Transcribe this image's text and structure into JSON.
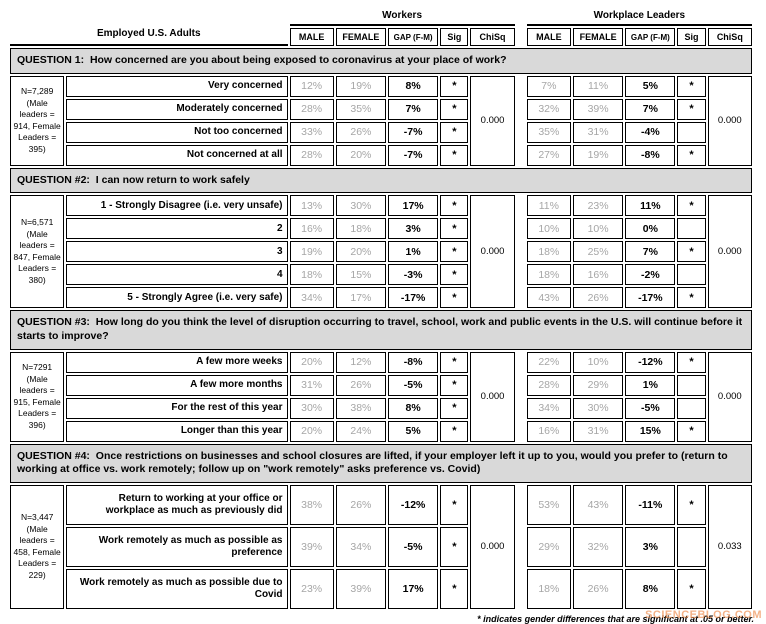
{
  "header": {
    "adults_label": "Employed U.S. Adults",
    "workers_label": "Workers",
    "leaders_label": "Workplace Leaders",
    "columns": {
      "male": "MALE",
      "female": "FEMALE",
      "gap": "GAP (F-M)",
      "sig": "Sig",
      "chisq": "ChiSq"
    }
  },
  "questions": [
    {
      "prefix": "QUESTION 1:",
      "text": "How concerned are you about being exposed to coronavirus at your place of work?",
      "n_label": "N=7,289 (Male leaders = 914, Female Leaders = 395)",
      "workers_chisq": "0.000",
      "leaders_chisq": "0.000",
      "rows": [
        {
          "label": "Very concerned",
          "workers": {
            "male": "12%",
            "female": "19%",
            "gap": "8%",
            "sig": "*"
          },
          "leaders": {
            "male": "7%",
            "female": "11%",
            "gap": "5%",
            "sig": "*"
          }
        },
        {
          "label": "Moderately concerned",
          "workers": {
            "male": "28%",
            "female": "35%",
            "gap": "7%",
            "sig": "*"
          },
          "leaders": {
            "male": "32%",
            "female": "39%",
            "gap": "7%",
            "sig": "*"
          }
        },
        {
          "label": "Not too concerned",
          "workers": {
            "male": "33%",
            "female": "26%",
            "gap": "-7%",
            "sig": "*"
          },
          "leaders": {
            "male": "35%",
            "female": "31%",
            "gap": "-4%",
            "sig": ""
          }
        },
        {
          "label": "Not concerned at all",
          "workers": {
            "male": "28%",
            "female": "20%",
            "gap": "-7%",
            "sig": "*"
          },
          "leaders": {
            "male": "27%",
            "female": "19%",
            "gap": "-8%",
            "sig": "*"
          }
        }
      ]
    },
    {
      "prefix": "QUESTION #2:",
      "text": "I can now return to work safely",
      "n_label": "N=6,571 (Male leaders = 847, Female Leaders = 380)",
      "workers_chisq": "0.000",
      "leaders_chisq": "0.000",
      "rows": [
        {
          "label": "1 - Strongly Disagree (i.e. very unsafe)",
          "workers": {
            "male": "13%",
            "female": "30%",
            "gap": "17%",
            "sig": "*"
          },
          "leaders": {
            "male": "11%",
            "female": "23%",
            "gap": "11%",
            "sig": "*"
          }
        },
        {
          "label": "2",
          "workers": {
            "male": "16%",
            "female": "18%",
            "gap": "3%",
            "sig": "*"
          },
          "leaders": {
            "male": "10%",
            "female": "10%",
            "gap": "0%",
            "sig": ""
          }
        },
        {
          "label": "3",
          "workers": {
            "male": "19%",
            "female": "20%",
            "gap": "1%",
            "sig": "*"
          },
          "leaders": {
            "male": "18%",
            "female": "25%",
            "gap": "7%",
            "sig": "*"
          }
        },
        {
          "label": "4",
          "workers": {
            "male": "18%",
            "female": "15%",
            "gap": "-3%",
            "sig": "*"
          },
          "leaders": {
            "male": "18%",
            "female": "16%",
            "gap": "-2%",
            "sig": ""
          }
        },
        {
          "label": "5 - Strongly Agree (i.e. very safe)",
          "workers": {
            "male": "34%",
            "female": "17%",
            "gap": "-17%",
            "sig": "*"
          },
          "leaders": {
            "male": "43%",
            "female": "26%",
            "gap": "-17%",
            "sig": "*"
          }
        }
      ]
    },
    {
      "prefix": "QUESTION #3:",
      "text": "How long do you think the level of disruption occurring to travel, school, work and public events in the U.S. will continue before it starts to improve?",
      "n_label": "N=7291 (Male leaders = 915, Female Leaders = 396)",
      "workers_chisq": "0.000",
      "leaders_chisq": "0.000",
      "rows": [
        {
          "label": "A few more weeks",
          "workers": {
            "male": "20%",
            "female": "12%",
            "gap": "-8%",
            "sig": "*"
          },
          "leaders": {
            "male": "22%",
            "female": "10%",
            "gap": "-12%",
            "sig": "*"
          }
        },
        {
          "label": "A few more months",
          "workers": {
            "male": "31%",
            "female": "26%",
            "gap": "-5%",
            "sig": "*"
          },
          "leaders": {
            "male": "28%",
            "female": "29%",
            "gap": "1%",
            "sig": ""
          }
        },
        {
          "label": "For the rest of this year",
          "workers": {
            "male": "30%",
            "female": "38%",
            "gap": "8%",
            "sig": "*"
          },
          "leaders": {
            "male": "34%",
            "female": "30%",
            "gap": "-5%",
            "sig": ""
          }
        },
        {
          "label": "Longer than this year",
          "workers": {
            "male": "20%",
            "female": "24%",
            "gap": "5%",
            "sig": "*"
          },
          "leaders": {
            "male": "16%",
            "female": "31%",
            "gap": "15%",
            "sig": "*"
          }
        }
      ]
    },
    {
      "prefix": "QUESTION #4:",
      "text": "Once restrictions on businesses and school closures are lifted, if your employer left it up to you, would you prefer to (return to working at office vs. work remotely; follow up on \"work remotely\" asks preference vs. Covid)",
      "n_label": "N=3,447 (Male leaders = 458, Female Leaders = 229)",
      "workers_chisq": "0.000",
      "leaders_chisq": "0.033",
      "rows": [
        {
          "label": "Return to working at your office or workplace as much as previously did",
          "workers": {
            "male": "38%",
            "female": "26%",
            "gap": "-12%",
            "sig": "*"
          },
          "leaders": {
            "male": "53%",
            "female": "43%",
            "gap": "-11%",
            "sig": "*"
          }
        },
        {
          "label": "Work remotely as much as possible as preference",
          "workers": {
            "male": "39%",
            "female": "34%",
            "gap": "-5%",
            "sig": "*"
          },
          "leaders": {
            "male": "29%",
            "female": "32%",
            "gap": "3%",
            "sig": ""
          }
        },
        {
          "label": "Work remotely as much as possible due to Covid",
          "workers": {
            "male": "23%",
            "female": "39%",
            "gap": "17%",
            "sig": "*"
          },
          "leaders": {
            "male": "18%",
            "female": "26%",
            "gap": "8%",
            "sig": "*"
          }
        }
      ]
    }
  ],
  "footnote": "* indicates gender differences that are significant at .05 or better.",
  "watermark": "SCIENCEBLOG.COM",
  "colors": {
    "banner_bg": "#d9d9d9",
    "muted_value": "#a6a6a6",
    "watermark": "#ee8a4a"
  }
}
